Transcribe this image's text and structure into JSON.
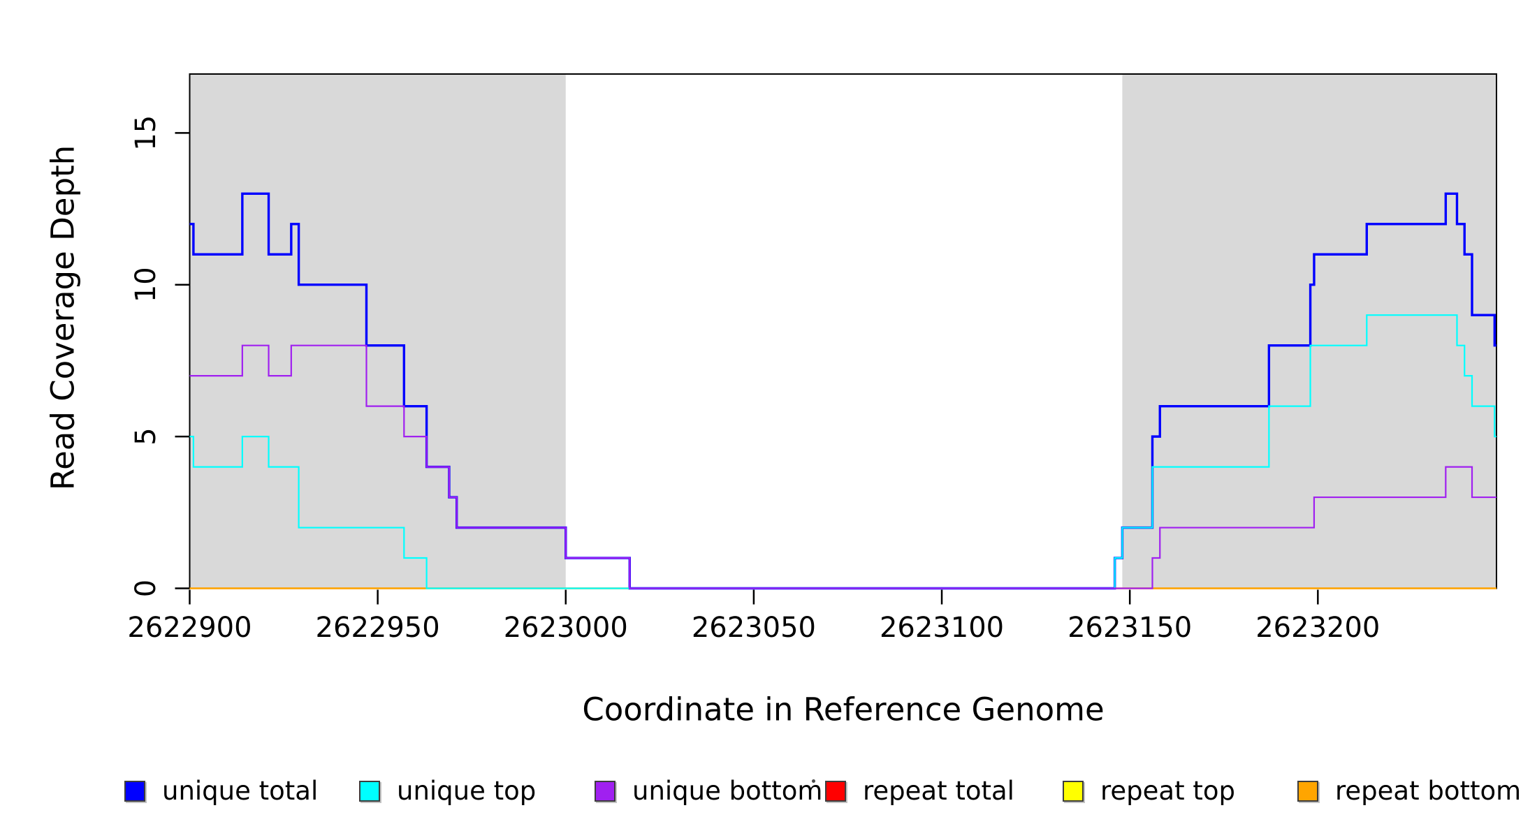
{
  "figure": {
    "background": "#ffffff",
    "x_title": "Coordinate in Reference Genome",
    "y_title": "Read Coverage Depth"
  },
  "chart_data": {
    "type": "line",
    "subtype": "step",
    "title": "",
    "xlabel": "Coordinate in Reference Genome",
    "ylabel": "Read Coverage Depth",
    "xlim": [
      2622900,
      2623247.5
    ],
    "ylim": [
      0,
      16.94
    ],
    "x_ticks": [
      {
        "value": 2622900,
        "label": "2622900"
      },
      {
        "value": 2622950,
        "label": "2622950"
      },
      {
        "value": 2623000,
        "label": "2623000"
      },
      {
        "value": 2623050,
        "label": "2623050"
      },
      {
        "value": 2623100,
        "label": "2623100"
      },
      {
        "value": 2623150,
        "label": "2623150"
      },
      {
        "value": 2623200,
        "label": "2623200"
      }
    ],
    "y_ticks": [
      {
        "value": 0,
        "label": "0"
      },
      {
        "value": 5,
        "label": "5"
      },
      {
        "value": 10,
        "label": "10"
      },
      {
        "value": 15,
        "label": "15"
      }
    ],
    "grid": false,
    "box_color": "#000000",
    "shaded_regions": [
      {
        "from": 2622900,
        "to": 2623000,
        "color": "#D9D9D9"
      },
      {
        "from": 2623148,
        "to": 2623247.5,
        "color": "#D9D9D9"
      }
    ],
    "draw_order": [
      "repeat total",
      "repeat top",
      "repeat bottom",
      "unique total",
      "unique top",
      "unique bottom"
    ],
    "x_end": 2623247.5,
    "series": [
      {
        "name": "unique total",
        "color": "#0000FF",
        "line_width": 3.4,
        "steps": [
          [
            2622900,
            12
          ],
          [
            2622901,
            11
          ],
          [
            2622914,
            13
          ],
          [
            2622921,
            11
          ],
          [
            2622927,
            12
          ],
          [
            2622929,
            10
          ],
          [
            2622947,
            8
          ],
          [
            2622957,
            6
          ],
          [
            2622963,
            4
          ],
          [
            2622969,
            3
          ],
          [
            2622971,
            2
          ],
          [
            2623000,
            1
          ],
          [
            2623017,
            0
          ],
          [
            2623146,
            1
          ],
          [
            2623148,
            2
          ],
          [
            2623156,
            5
          ],
          [
            2623158,
            6
          ],
          [
            2623187,
            8
          ],
          [
            2623198,
            10
          ],
          [
            2623199,
            11
          ],
          [
            2623213,
            12
          ],
          [
            2623234,
            13
          ],
          [
            2623237,
            12
          ],
          [
            2623239,
            11
          ],
          [
            2623241,
            9
          ],
          [
            2623247,
            8
          ]
        ]
      },
      {
        "name": "unique top",
        "color": "#00FFFF",
        "line_width": 2.2,
        "steps": [
          [
            2622900,
            5
          ],
          [
            2622901,
            4
          ],
          [
            2622914,
            5
          ],
          [
            2622921,
            4
          ],
          [
            2622929,
            2
          ],
          [
            2622957,
            1
          ],
          [
            2622963,
            0
          ],
          [
            2623146,
            1
          ],
          [
            2623148,
            2
          ],
          [
            2623156,
            4
          ],
          [
            2623187,
            6
          ],
          [
            2623198,
            8
          ],
          [
            2623213,
            9
          ],
          [
            2623237,
            8
          ],
          [
            2623239,
            7
          ],
          [
            2623241,
            6
          ],
          [
            2623247,
            5
          ]
        ]
      },
      {
        "name": "unique bottom",
        "color": "#A020F0",
        "line_width": 2.2,
        "steps": [
          [
            2622900,
            7
          ],
          [
            2622914,
            8
          ],
          [
            2622921,
            7
          ],
          [
            2622927,
            8
          ],
          [
            2622947,
            6
          ],
          [
            2622957,
            5
          ],
          [
            2622963,
            4
          ],
          [
            2622969,
            3
          ],
          [
            2622971,
            2
          ],
          [
            2623000,
            1
          ],
          [
            2623017,
            0
          ],
          [
            2623156,
            1
          ],
          [
            2623158,
            2
          ],
          [
            2623199,
            3
          ],
          [
            2623234,
            4
          ],
          [
            2623241,
            3
          ]
        ]
      },
      {
        "name": "repeat total",
        "color": "#FF0000",
        "line_width": 2.2,
        "steps": [
          [
            2622900,
            0
          ]
        ]
      },
      {
        "name": "repeat top",
        "color": "#FFFF00",
        "line_width": 2.2,
        "steps": [
          [
            2622900,
            0
          ]
        ]
      },
      {
        "name": "repeat bottom",
        "color": "#FFA500",
        "line_width": 2.2,
        "steps": [
          [
            2622900,
            0
          ]
        ]
      }
    ]
  },
  "legend": {
    "items": [
      {
        "label": "unique total",
        "color": "#0000FF"
      },
      {
        "label": "unique top",
        "color": "#00FFFF"
      },
      {
        "label": "unique bottom",
        "color": "#A020F0"
      },
      {
        "label": "repeat total",
        "color": "#FF0000"
      },
      {
        "label": "repeat top",
        "color": "#FFFF00"
      },
      {
        "label": "repeat bottom",
        "color": "#FFA500"
      }
    ]
  }
}
